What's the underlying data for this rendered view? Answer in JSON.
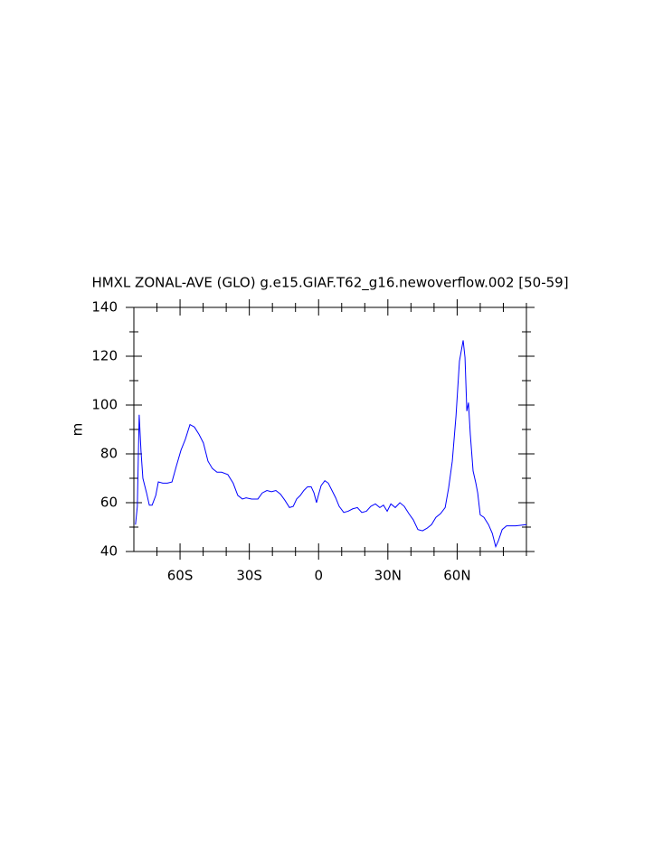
{
  "chart_data": {
    "type": "line",
    "title": "HMXL ZONAL-AVE (GLO) g.e15.GIAF.T62_g16.newoverflow.002 [50-59]",
    "y_label": "m",
    "x": [
      -79.3,
      -78.5,
      -77.7,
      -76.9,
      -76.1,
      -74.5,
      -73.3,
      -72.1,
      -70.5,
      -69.4,
      -67.5,
      -65.5,
      -63.5,
      -61.6,
      -59.6,
      -57.7,
      -55.7,
      -53.8,
      -51.8,
      -49.9,
      -47.9,
      -46,
      -44,
      -42,
      -39.3,
      -37,
      -35,
      -33,
      -31.4,
      -29,
      -26.3,
      -24.4,
      -22.4,
      -20.4,
      -18.5,
      -16.5,
      -14.6,
      -12.6,
      -11,
      -9.5,
      -7.9,
      -6.4,
      -4.8,
      -3.2,
      -2,
      -0.9,
      -0.1,
      1.1,
      2.7,
      4.2,
      5.8,
      7.4,
      8.9,
      10.9,
      12.8,
      14.8,
      16.8,
      18.7,
      20.7,
      22.6,
      24.6,
      26.5,
      28.1,
      29.7,
      31.3,
      33.2,
      35.2,
      37.1,
      39.1,
      41,
      43,
      45,
      46.9,
      48.9,
      50.8,
      52.8,
      54.8,
      56.3,
      57.9,
      59.5,
      61,
      62.6,
      63.4,
      64.2,
      64.9,
      65.7,
      66.9,
      68.1,
      68.9,
      70,
      71.6,
      73.6,
      75.2,
      76.7,
      77.9,
      79.5,
      81.4,
      85.3,
      90
    ],
    "series": [
      {
        "name": "HMXL",
        "color": "#0000ff",
        "values": [
          51,
          58.5,
          96,
          81,
          70,
          64,
          59,
          59,
          63,
          68.5,
          68,
          68,
          68.5,
          75,
          81.5,
          86,
          92,
          91,
          88,
          84.5,
          77,
          74,
          72.5,
          72.5,
          71.5,
          68,
          63,
          61.5,
          62,
          61.5,
          61.5,
          64,
          65,
          64.5,
          65,
          63.5,
          61,
          58,
          58.5,
          61.5,
          63,
          65,
          66.5,
          66.5,
          64,
          60,
          63,
          67,
          69,
          68,
          65,
          62,
          58.5,
          56,
          56.5,
          57.5,
          58,
          56,
          56.5,
          58.5,
          59.5,
          58,
          59,
          56.5,
          59.5,
          58,
          60,
          58.5,
          55.5,
          53,
          49,
          48.5,
          49.5,
          51,
          54,
          55.5,
          58,
          66,
          77,
          95.5,
          118,
          126.5,
          119.5,
          97.5,
          101,
          88,
          73,
          68,
          64,
          55,
          54,
          51,
          47.5,
          42,
          44.5,
          49,
          50.5,
          50.5,
          51
        ]
      }
    ],
    "xlim": [
      -80,
      90
    ],
    "xticks": [
      {
        "value": -60,
        "label": "60S"
      },
      {
        "value": -30,
        "label": "30S"
      },
      0,
      {
        "value": 30,
        "label": "30N"
      },
      {
        "value": 60,
        "label": "60N"
      }
    ],
    "x_minor_ticks": [
      -70,
      -50,
      -40,
      -20,
      -10,
      10,
      20,
      40,
      50,
      70,
      80,
      90
    ],
    "ylim": [
      40,
      140
    ],
    "yticks": [
      40,
      60,
      80,
      100,
      120,
      140
    ],
    "y_minor_ticks": [
      50,
      70,
      90,
      110,
      130
    ]
  }
}
